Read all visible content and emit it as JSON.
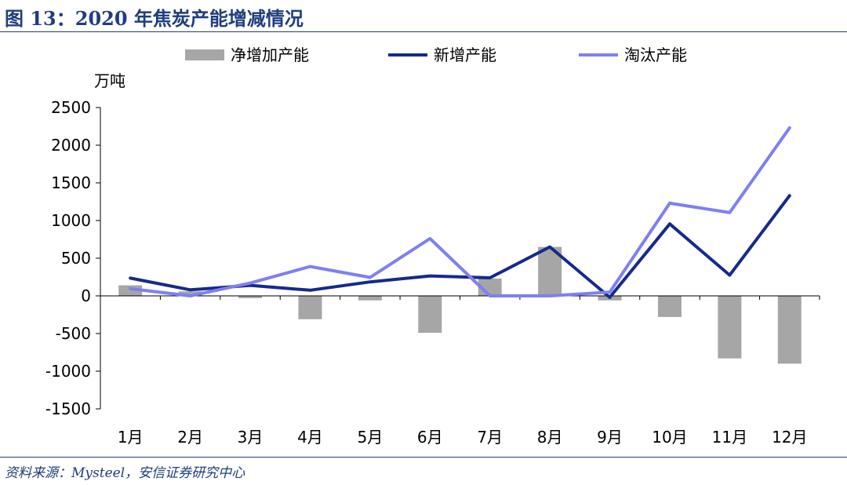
{
  "figure": {
    "title": "图 13：2020 年焦炭产能增减情况",
    "source": "资料来源：Mysteel，安信证券研究中心"
  },
  "chart_data": {
    "type": "bar",
    "unit_label": "万吨",
    "categories": [
      "1月",
      "2月",
      "3月",
      "4月",
      "5月",
      "6月",
      "7月",
      "8月",
      "9月",
      "10月",
      "11月",
      "12月"
    ],
    "ylim": [
      -1500,
      2500
    ],
    "yticks": [
      2500,
      2000,
      1500,
      1000,
      500,
      0,
      -500,
      -1000,
      -1500
    ],
    "grid": false,
    "legend_position": "top",
    "series": [
      {
        "name": "净增加产能",
        "type": "bar",
        "color": "#a6a6a6",
        "values": [
          140,
          60,
          -30,
          -310,
          -60,
          -490,
          230,
          650,
          -60,
          -280,
          -830,
          -900
        ]
      },
      {
        "name": "新增产能",
        "type": "line",
        "color": "#152a8c",
        "values": [
          235,
          80,
          140,
          75,
          185,
          265,
          240,
          650,
          -20,
          955,
          275,
          1330
        ]
      },
      {
        "name": "淘汰产能",
        "type": "line",
        "color": "#7f7ff2",
        "values": [
          95,
          0,
          170,
          390,
          245,
          760,
          0,
          0,
          50,
          1230,
          1105,
          2230
        ]
      }
    ]
  }
}
